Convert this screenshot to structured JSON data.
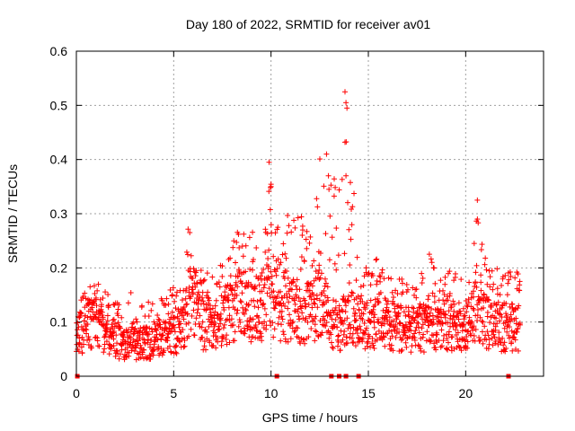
{
  "chart_data": {
    "type": "scatter",
    "title": "Day 180 of 2022, SRMTID for receiver av01",
    "xlabel": "GPS time / hours",
    "ylabel": "SRMTID / TECUs",
    "xlim": [
      0,
      24
    ],
    "ylim": [
      0,
      0.6
    ],
    "xticks": [
      0,
      5,
      10,
      15,
      20
    ],
    "yticks": [
      0,
      0.1,
      0.2,
      0.3,
      0.4,
      0.5,
      0.6
    ],
    "xtick_labels": [
      "0",
      "5",
      "10",
      "15",
      "20"
    ],
    "ytick_labels": [
      "0",
      "0.1",
      "0.2",
      "0.3",
      "0.4",
      "0.5",
      "0.6"
    ],
    "grid": true,
    "marker": "+",
    "color": "#ff0000",
    "series": [
      {
        "name": "SRMTID av01",
        "profile": {
          "x": [
            0.0,
            0.5,
            1.0,
            1.5,
            2.0,
            2.5,
            3.0,
            3.5,
            4.0,
            4.5,
            5.0,
            5.5,
            5.8,
            6.2,
            6.5,
            7.0,
            7.5,
            8.0,
            8.5,
            9.0,
            9.5,
            10.0,
            10.5,
            11.0,
            11.5,
            12.0,
            12.5,
            13.0,
            13.5,
            14.0,
            14.5,
            15.0,
            15.5,
            16.0,
            16.5,
            17.0,
            17.5,
            18.0,
            18.5,
            19.0,
            19.5,
            20.0,
            20.5,
            21.0,
            21.5,
            22.0,
            22.5,
            22.8
          ],
          "median": [
            0.075,
            0.09,
            0.11,
            0.08,
            0.065,
            0.06,
            0.06,
            0.06,
            0.065,
            0.075,
            0.08,
            0.085,
            0.15,
            0.12,
            0.095,
            0.1,
            0.11,
            0.125,
            0.14,
            0.12,
            0.13,
            0.14,
            0.13,
            0.12,
            0.12,
            0.12,
            0.14,
            0.11,
            0.09,
            0.12,
            0.1,
            0.095,
            0.095,
            0.1,
            0.09,
            0.085,
            0.085,
            0.09,
            0.085,
            0.095,
            0.09,
            0.085,
            0.12,
            0.1,
            0.09,
            0.09,
            0.09,
            0.09
          ],
          "max": [
            0.13,
            0.16,
            0.18,
            0.16,
            0.14,
            0.13,
            0.17,
            0.14,
            0.14,
            0.16,
            0.18,
            0.18,
            0.3,
            0.2,
            0.2,
            0.2,
            0.22,
            0.25,
            0.28,
            0.3,
            0.23,
            0.4,
            0.25,
            0.32,
            0.3,
            0.27,
            0.41,
            0.38,
            0.35,
            0.53,
            0.25,
            0.2,
            0.22,
            0.2,
            0.18,
            0.18,
            0.18,
            0.24,
            0.2,
            0.2,
            0.19,
            0.17,
            0.33,
            0.22,
            0.2,
            0.2,
            0.2,
            0.21
          ]
        },
        "spikes": [
          {
            "x": 9.9,
            "y": 0.395
          },
          {
            "x": 10.0,
            "y": 0.35
          },
          {
            "x": 12.85,
            "y": 0.41
          },
          {
            "x": 12.95,
            "y": 0.37
          },
          {
            "x": 13.5,
            "y": 0.344
          },
          {
            "x": 13.8,
            "y": 0.525
          },
          {
            "x": 13.85,
            "y": 0.505
          },
          {
            "x": 13.9,
            "y": 0.495
          },
          {
            "x": 13.8,
            "y": 0.432
          },
          {
            "x": 13.85,
            "y": 0.37
          },
          {
            "x": 20.6,
            "y": 0.325
          }
        ],
        "data_gaps_x": [
          0.05,
          10.3,
          13.1,
          13.5,
          13.85,
          14.5,
          22.2
        ]
      }
    ]
  }
}
